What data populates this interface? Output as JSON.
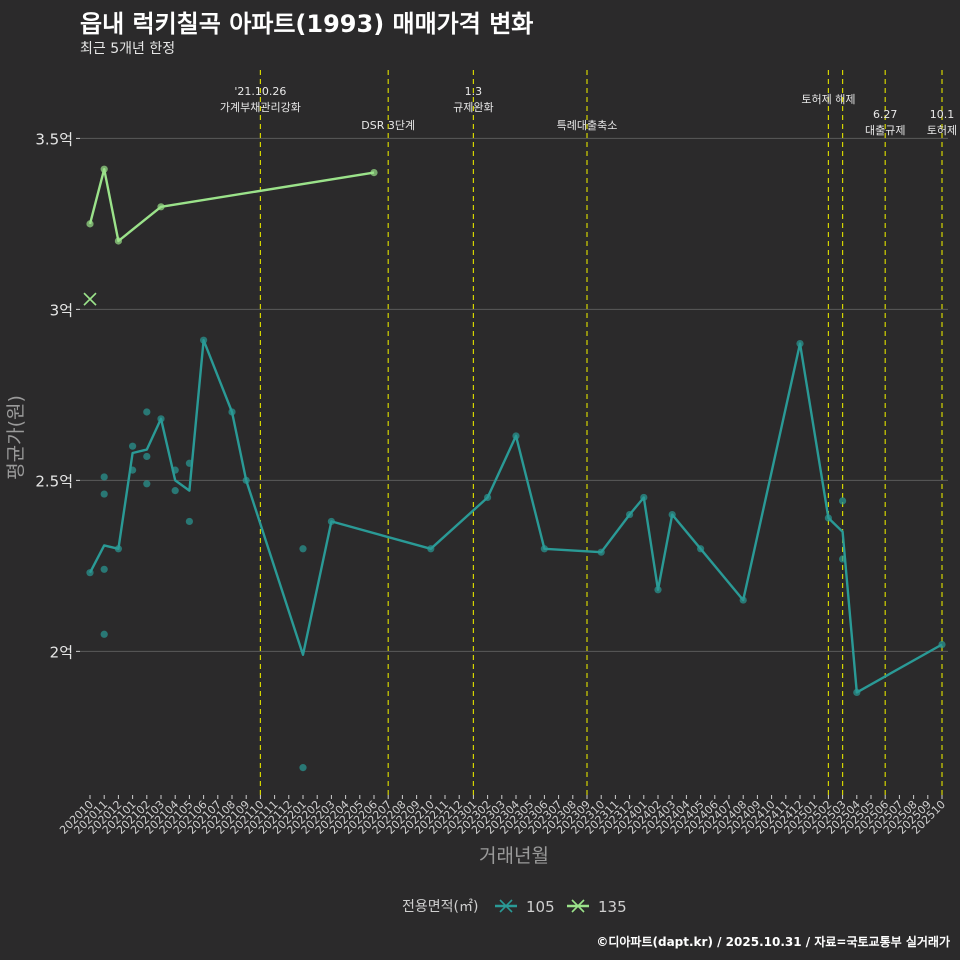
{
  "title": "읍내 럭키칠곡 아파트(1993) 매매가격 변화",
  "subtitle": "최근 5개년 한정",
  "caption": "©디아파트(dapt.kr) / 2025.10.31 / 자료=국토교통부 실거래가",
  "colors": {
    "background": "#2b2a2b",
    "grid": "#5a5a5a",
    "event_line": "#d4d400",
    "series_105": "#2a9a96",
    "series_135": "#9be28a",
    "text": "#cfcfcf"
  },
  "chart_data": {
    "type": "line",
    "xlabel": "거래년월",
    "ylabel": "평균가(원)",
    "ylim": [
      1.58,
      3.7
    ],
    "yticks": [
      {
        "value": 2.0,
        "label": "2억"
      },
      {
        "value": 2.5,
        "label": "2.5억"
      },
      {
        "value": 3.0,
        "label": "3억"
      },
      {
        "value": 3.5,
        "label": "3.5억"
      }
    ],
    "categories": [
      "202010",
      "202011",
      "202012",
      "202101",
      "202102",
      "202103",
      "202104",
      "202105",
      "202106",
      "202107",
      "202108",
      "202109",
      "202110",
      "202111",
      "202112",
      "202201",
      "202202",
      "202203",
      "202204",
      "202205",
      "202206",
      "202207",
      "202208",
      "202209",
      "202210",
      "202211",
      "202212",
      "202301",
      "202302",
      "202303",
      "202304",
      "202305",
      "202306",
      "202307",
      "202308",
      "202309",
      "202310",
      "202311",
      "202312",
      "202401",
      "202402",
      "202403",
      "202404",
      "202405",
      "202406",
      "202407",
      "202408",
      "202409",
      "202410",
      "202411",
      "202412",
      "202501",
      "202502",
      "202503",
      "202504",
      "202505",
      "202506",
      "202507",
      "202508",
      "202509",
      "202510"
    ],
    "legend": {
      "title": "전용면적(㎡)",
      "items": [
        "105",
        "135"
      ],
      "position": "bottom"
    },
    "events": [
      {
        "month": "202110",
        "lines": [
          "'21.10.26",
          "가계부채관리강화"
        ],
        "tier": 1
      },
      {
        "month": "202207",
        "lines": [
          "DSR 3단계"
        ],
        "tier": 3
      },
      {
        "month": "202301",
        "lines": [
          "1.3",
          "규제완화"
        ],
        "tier": 1
      },
      {
        "month": "202309",
        "lines": [
          "특례대출축소"
        ],
        "tier": 3
      },
      {
        "month": "202502",
        "lines": [
          "토허제 해제"
        ],
        "tier": 2
      },
      {
        "month": "202503",
        "lines": [],
        "tier": 2
      },
      {
        "month": "202506",
        "lines": [
          "6.27",
          "대출규제"
        ],
        "tier": 4
      },
      {
        "month": "202510",
        "lines": [
          "10.1",
          "토허제"
        ],
        "tier": 4
      }
    ],
    "series": [
      {
        "name": "105",
        "line": [
          [
            "202010",
            2.23
          ],
          [
            "202011",
            2.31
          ],
          [
            "202012",
            2.3
          ],
          [
            "202101",
            2.58
          ],
          [
            "202102",
            2.59
          ],
          [
            "202103",
            2.68
          ],
          [
            "202104",
            2.5
          ],
          [
            "202105",
            2.47
          ],
          [
            "202106",
            2.91
          ],
          [
            "202108",
            2.7
          ],
          [
            "202109",
            2.5
          ],
          [
            "202201",
            1.99
          ],
          [
            "202203",
            2.38
          ],
          [
            "202210",
            2.3
          ],
          [
            "202302",
            2.45
          ],
          [
            "202304",
            2.63
          ],
          [
            "202306",
            2.3
          ],
          [
            "202310",
            2.29
          ],
          [
            "202312",
            2.4
          ],
          [
            "202401",
            2.45
          ],
          [
            "202402",
            2.18
          ],
          [
            "202403",
            2.4
          ],
          [
            "202405",
            2.3
          ],
          [
            "202408",
            2.15
          ],
          [
            "202412",
            2.9
          ],
          [
            "202502",
            2.39
          ],
          [
            "202503",
            2.35
          ],
          [
            "202504",
            1.88
          ],
          [
            "202510",
            2.02
          ]
        ],
        "points": [
          [
            "202010",
            2.23
          ],
          [
            "202011",
            2.05
          ],
          [
            "202011",
            2.24
          ],
          [
            "202011",
            2.46
          ],
          [
            "202011",
            2.51
          ],
          [
            "202012",
            2.3
          ],
          [
            "202101",
            2.53
          ],
          [
            "202101",
            2.6
          ],
          [
            "202102",
            2.49
          ],
          [
            "202102",
            2.57
          ],
          [
            "202102",
            2.7
          ],
          [
            "202103",
            2.68
          ],
          [
            "202104",
            2.47
          ],
          [
            "202104",
            2.53
          ],
          [
            "202105",
            2.38
          ],
          [
            "202105",
            2.55
          ],
          [
            "202106",
            2.91
          ],
          [
            "202108",
            2.7
          ],
          [
            "202109",
            2.5
          ],
          [
            "202201",
            1.66
          ],
          [
            "202201",
            2.3
          ],
          [
            "202203",
            2.38
          ],
          [
            "202210",
            2.3
          ],
          [
            "202302",
            2.45
          ],
          [
            "202304",
            2.63
          ],
          [
            "202306",
            2.3
          ],
          [
            "202310",
            2.29
          ],
          [
            "202312",
            2.4
          ],
          [
            "202401",
            2.45
          ],
          [
            "202402",
            2.18
          ],
          [
            "202403",
            2.4
          ],
          [
            "202405",
            2.3
          ],
          [
            "202408",
            2.15
          ],
          [
            "202412",
            2.9
          ],
          [
            "202502",
            2.39
          ],
          [
            "202503",
            2.27
          ],
          [
            "202503",
            2.44
          ],
          [
            "202504",
            1.88
          ],
          [
            "202510",
            2.02
          ]
        ]
      },
      {
        "name": "135",
        "line": [
          [
            "202010",
            3.25
          ],
          [
            "202011",
            3.41
          ],
          [
            "202012",
            3.2
          ],
          [
            "202103",
            3.3
          ],
          [
            "202206",
            3.4
          ]
        ],
        "points": [
          [
            "202010",
            3.25
          ],
          [
            "202011",
            3.41
          ],
          [
            "202012",
            3.2
          ],
          [
            "202103",
            3.3
          ],
          [
            "202206",
            3.4
          ]
        ],
        "cross": [
          [
            "202010",
            3.03
          ]
        ]
      }
    ]
  }
}
